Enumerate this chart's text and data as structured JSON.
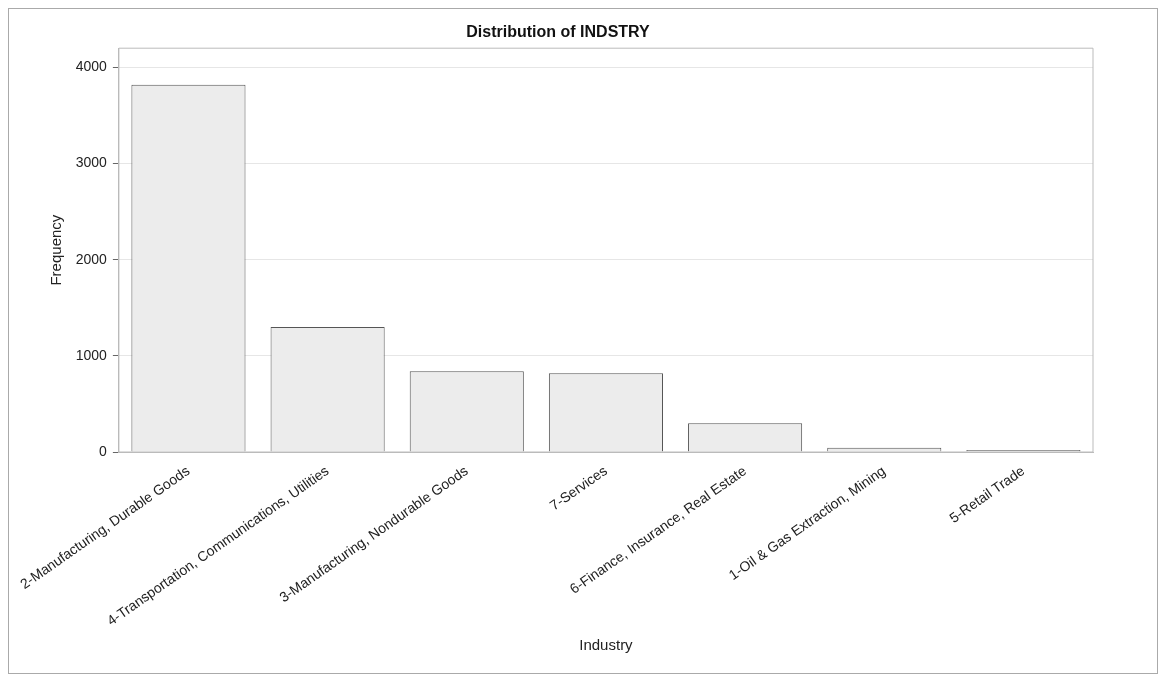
{
  "chart_data": {
    "type": "bar",
    "title": "Distribution of INDSTRY",
    "xlabel": "Industry",
    "ylabel": "Frequency",
    "categories": [
      "2-Manufacturing, Durable Goods",
      "4-Transportation, Communications, Utilities",
      "3-Manufacturing, Nondurable Goods",
      "7-Services",
      "6-Finance, Insurance, Real Estate",
      "1-Oil & Gas Extraction, Mining",
      "5-Retail Trade"
    ],
    "values": [
      3820,
      1300,
      840,
      820,
      300,
      45,
      20
    ],
    "color": "#ececec",
    "ylim": [
      0,
      4200
    ],
    "yticks": [
      0,
      1000,
      2000,
      3000,
      4000
    ],
    "grid": "y",
    "legend": false
  }
}
